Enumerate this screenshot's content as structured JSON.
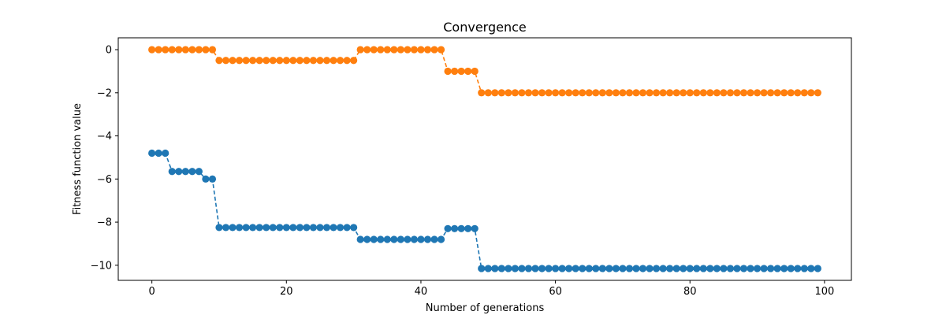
{
  "chart_data": {
    "type": "line",
    "title": "Convergence",
    "xlabel": "Number of generations",
    "ylabel": "Fitness function value",
    "xlim": [
      -5,
      104
    ],
    "ylim": [
      -10.7,
      0.55
    ],
    "xticks": [
      0,
      20,
      40,
      60,
      80,
      100
    ],
    "yticks": [
      0,
      -2,
      -4,
      -6,
      -8,
      -10
    ],
    "x_tick_labels": [
      "0",
      "20",
      "40",
      "60",
      "80",
      "100"
    ],
    "y_tick_labels": [
      "0",
      "−2",
      "−4",
      "−6",
      "−8",
      "−10"
    ],
    "grid": false,
    "legend": "none",
    "line_style": "dashed",
    "marker": "circle",
    "series": [
      {
        "color": "#1f77b4",
        "segments": [
          {
            "from": 0,
            "to": 2,
            "value": -4.8
          },
          {
            "from": 3,
            "to": 7,
            "value": -5.65
          },
          {
            "from": 8,
            "to": 9,
            "value": -6.0
          },
          {
            "from": 10,
            "to": 30,
            "value": -8.25
          },
          {
            "from": 31,
            "to": 43,
            "value": -8.8
          },
          {
            "from": 44,
            "to": 48,
            "value": -8.3
          },
          {
            "from": 49,
            "to": 99,
            "value": -10.15
          }
        ]
      },
      {
        "color": "#ff7f0e",
        "segments": [
          {
            "from": 0,
            "to": 9,
            "value": 0.0
          },
          {
            "from": 10,
            "to": 30,
            "value": -0.5
          },
          {
            "from": 31,
            "to": 43,
            "value": 0.0
          },
          {
            "from": 44,
            "to": 48,
            "value": -1.0
          },
          {
            "from": 49,
            "to": 99,
            "value": -2.0
          }
        ]
      }
    ]
  }
}
